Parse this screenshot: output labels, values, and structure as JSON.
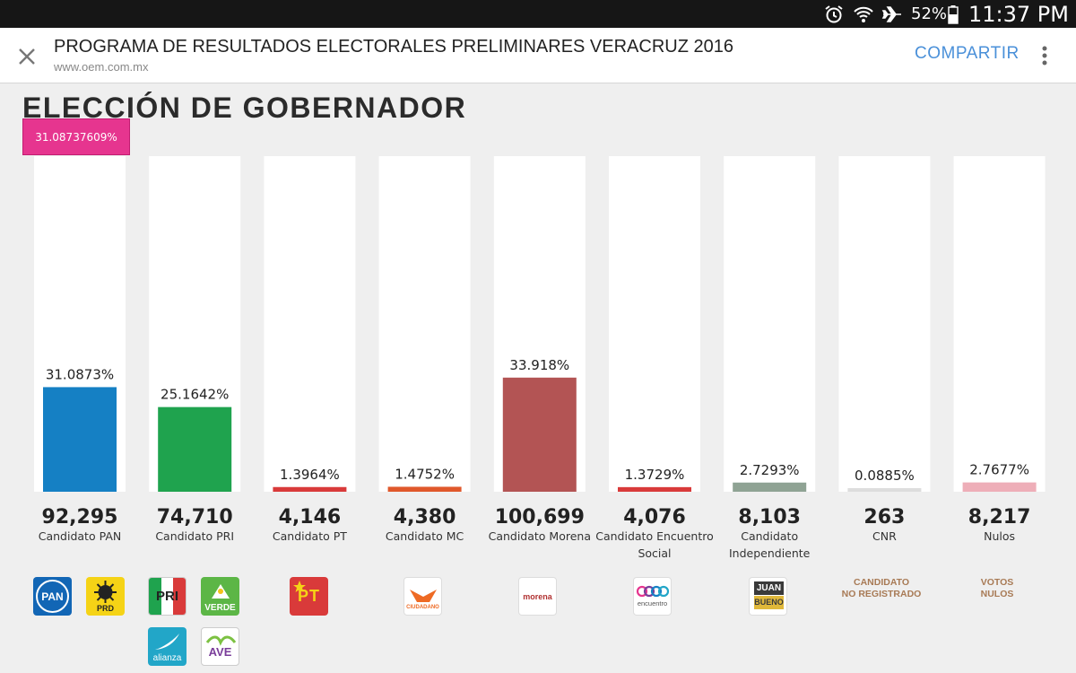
{
  "status": {
    "battery": "52%",
    "time": "11:37 PM"
  },
  "header": {
    "title": "PROGRAMA DE RESULTADOS ELECTORALES PRELIMINARES VERACRUZ 2016",
    "url": "www.oem.com.mx",
    "share_label": "COMPARTIR"
  },
  "section_title": "ELECCIÓN DE GOBERNADOR",
  "tooltip": "31.08737609%",
  "logos": {
    "pan": "PAN",
    "prd": "PRD",
    "pri": "PRI",
    "verde": "VERDE",
    "alianza": "alianza",
    "ave": "AVE",
    "pt": "PT",
    "mc": "CIUDADANO",
    "morena": "morena",
    "encuentro": "encuentro",
    "juan": "JUAN",
    "bueno": "BUENO",
    "cnr": "CANDIDATO\nNO REGISTRADO",
    "nulos": "VOTOS\nNULOS"
  },
  "chart_data": {
    "type": "bar",
    "title": "ELECCIÓN DE GOBERNADOR",
    "ylim": [
      0,
      100
    ],
    "categories": [
      "Candidato PAN",
      "Candidato PRI",
      "Candidato PT",
      "Candidato MC",
      "Candidato Morena",
      "Candidato Encuentro Social",
      "Candidato Independiente",
      "CNR",
      "Nulos"
    ],
    "values": [
      31.0873,
      25.1642,
      1.3964,
      1.4752,
      33.918,
      1.3729,
      2.7293,
      0.0885,
      2.7677
    ],
    "percent_labels": [
      "31.0873%",
      "25.1642%",
      "1.3964%",
      "1.4752%",
      "33.918%",
      "1.3729%",
      "2.7293%",
      "0.0885%",
      "2.7677%"
    ],
    "votes": [
      "92,295",
      "74,710",
      "4,146",
      "4,380",
      "100,699",
      "4,076",
      "8,103",
      "263",
      "8,217"
    ],
    "name_lines": [
      [
        "Candidato PAN"
      ],
      [
        "Candidato PRI"
      ],
      [
        "Candidato PT"
      ],
      [
        "Candidato MC"
      ],
      [
        "Candidato Morena"
      ],
      [
        "Candidato Encuentro",
        "Social"
      ],
      [
        "Candidato",
        "Independiente"
      ],
      [
        "CNR"
      ],
      [
        "Nulos"
      ]
    ],
    "colors": [
      "#1580c4",
      "#1fa34e",
      "#d93a3a",
      "#e0582b",
      "#b35454",
      "#d93a3a",
      "#8fa394",
      "#dddddd",
      "#eeaeb8"
    ]
  }
}
